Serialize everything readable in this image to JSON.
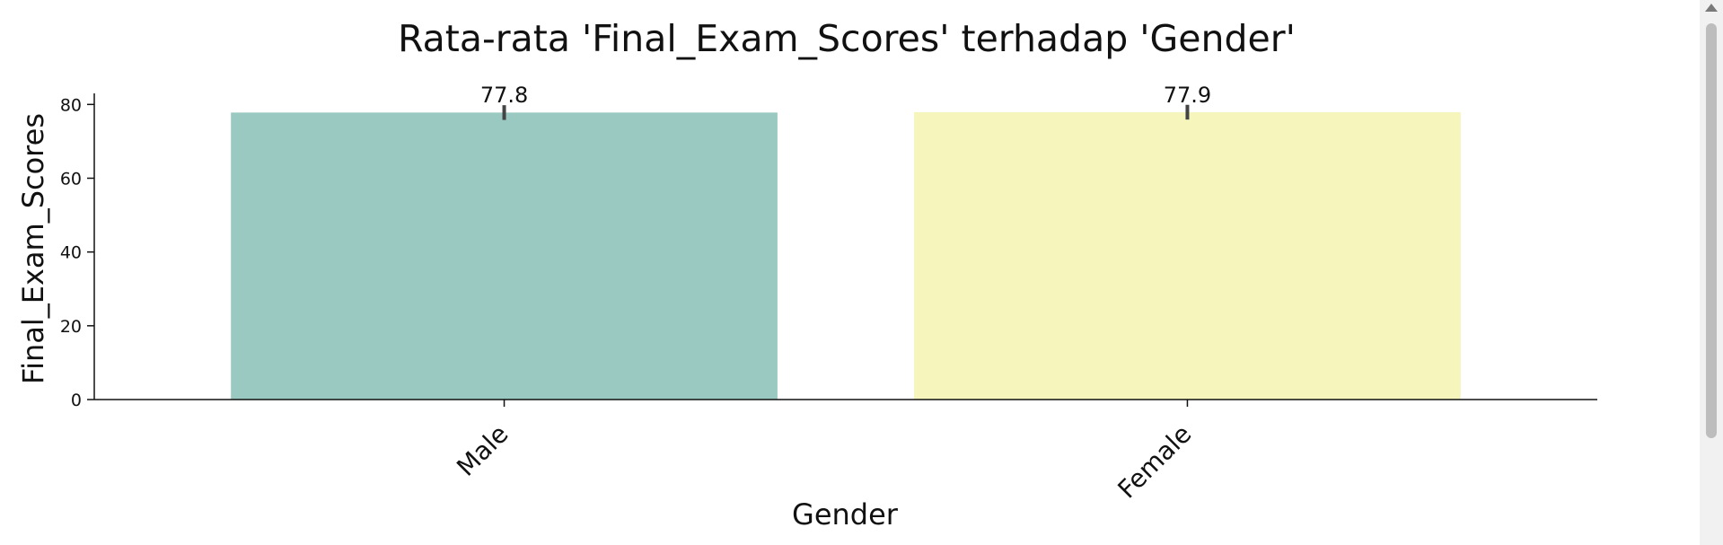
{
  "chart_data": {
    "type": "bar",
    "title": "Rata-rata 'Final_Exam_Scores' terhadap 'Gender'",
    "xlabel": "Gender",
    "ylabel": "Final_Exam_Scores",
    "categories": [
      "Male",
      "Female"
    ],
    "values": [
      77.8,
      77.9
    ],
    "data_labels": [
      "77.8",
      "77.9"
    ],
    "error_bars": [
      [
        75.8,
        79.8
      ],
      [
        75.9,
        79.9
      ]
    ],
    "ylim": [
      0,
      83
    ],
    "yticks": [
      0,
      20,
      40,
      60,
      80
    ],
    "bar_colors": [
      "#99c9c1",
      "#f5f5bc"
    ],
    "grid": false,
    "x_tick_rotation": 45
  }
}
